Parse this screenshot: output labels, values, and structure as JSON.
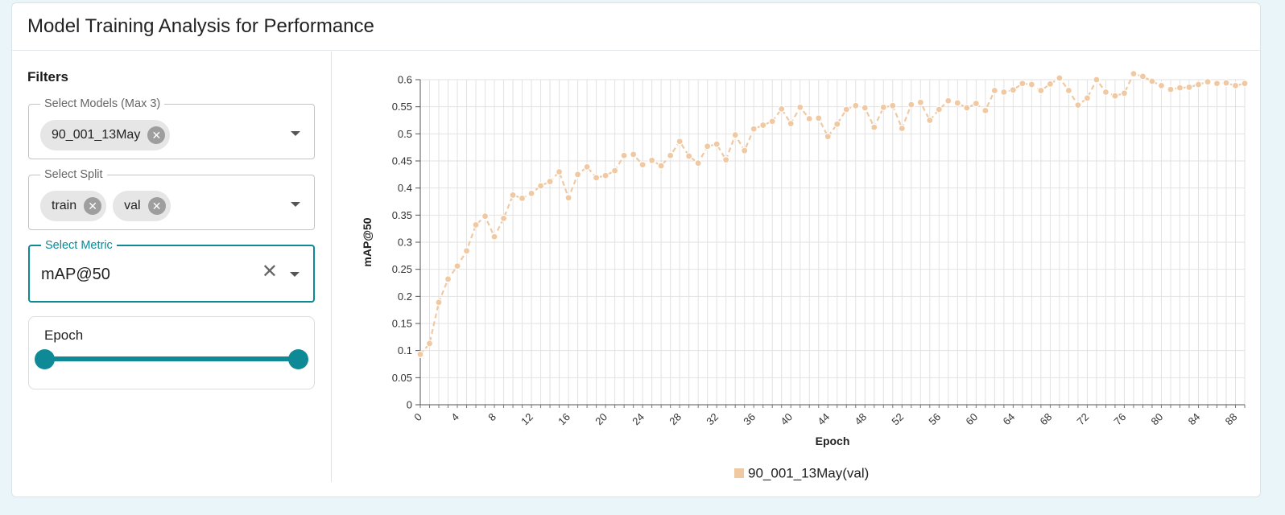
{
  "header": {
    "title": "Model Training Analysis for Performance"
  },
  "sidebar": {
    "filters_title": "Filters",
    "models": {
      "label": "Select Models (Max 3)",
      "chips": [
        "90_001_13May"
      ]
    },
    "split": {
      "label": "Select Split",
      "chips": [
        "train",
        "val"
      ]
    },
    "metric": {
      "label": "Select Metric",
      "value": "mAP@50"
    },
    "epoch": {
      "label": "Epoch",
      "range_fraction": [
        0,
        1
      ]
    }
  },
  "icons": {
    "chip_remove": "close-circle-icon",
    "dropdown": "chevron-down-icon",
    "clear": "close-icon"
  },
  "colors": {
    "accent": "#0e8a96",
    "series": "#f0c9a3"
  },
  "chart_data": {
    "type": "line",
    "xlabel": "Epoch",
    "ylabel": "mAP@50",
    "xlim": [
      0,
      89
    ],
    "ylim": [
      0,
      0.6
    ],
    "xticks": [
      0,
      4,
      8,
      12,
      16,
      20,
      24,
      28,
      32,
      36,
      40,
      44,
      48,
      52,
      56,
      60,
      64,
      68,
      72,
      76,
      80,
      84,
      88
    ],
    "yticks": [
      "0",
      "0.05",
      "0.1",
      "0.15",
      "0.2",
      "0.25",
      "0.3",
      "0.35",
      "0.4",
      "0.45",
      "0.5",
      "0.55",
      "0.6"
    ],
    "grid": true,
    "legend_position": "bottom",
    "series": [
      {
        "name": "90_001_13May(val)",
        "x": [
          0,
          1,
          2,
          3,
          4,
          5,
          6,
          7,
          8,
          9,
          10,
          11,
          12,
          13,
          14,
          15,
          16,
          17,
          18,
          19,
          20,
          21,
          22,
          23,
          24,
          25,
          26,
          27,
          28,
          29,
          30,
          31,
          32,
          33,
          34,
          35,
          36,
          37,
          38,
          39,
          40,
          41,
          42,
          43,
          44,
          45,
          46,
          47,
          48,
          49,
          50,
          51,
          52,
          53,
          54,
          55,
          56,
          57,
          58,
          59,
          60,
          61,
          62,
          63,
          64,
          65,
          66,
          67,
          68,
          69,
          70,
          71,
          72,
          73,
          74,
          75,
          76,
          77,
          78,
          79,
          80,
          81,
          82,
          83,
          84,
          85,
          86,
          87,
          88,
          89
        ],
        "values": [
          0.093,
          0.113,
          0.189,
          0.232,
          0.256,
          0.284,
          0.332,
          0.348,
          0.31,
          0.344,
          0.387,
          0.381,
          0.39,
          0.404,
          0.412,
          0.43,
          0.382,
          0.425,
          0.439,
          0.419,
          0.423,
          0.432,
          0.46,
          0.462,
          0.443,
          0.451,
          0.441,
          0.46,
          0.486,
          0.459,
          0.446,
          0.477,
          0.481,
          0.452,
          0.498,
          0.469,
          0.509,
          0.516,
          0.523,
          0.546,
          0.519,
          0.549,
          0.528,
          0.529,
          0.495,
          0.518,
          0.545,
          0.552,
          0.548,
          0.512,
          0.549,
          0.552,
          0.51,
          0.554,
          0.558,
          0.525,
          0.545,
          0.561,
          0.557,
          0.548,
          0.556,
          0.543,
          0.58,
          0.577,
          0.581,
          0.593,
          0.591,
          0.58,
          0.592,
          0.603,
          0.58,
          0.553,
          0.566,
          0.6,
          0.577,
          0.57,
          0.575,
          0.611,
          0.606,
          0.597,
          0.589,
          0.582,
          0.585,
          0.586,
          0.591,
          0.596,
          0.593,
          0.594,
          0.589,
          0.593
        ]
      }
    ]
  }
}
